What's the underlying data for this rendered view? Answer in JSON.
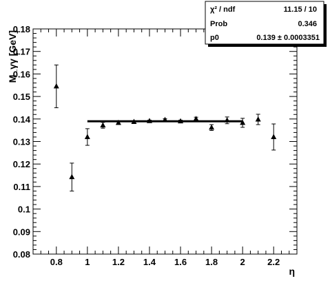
{
  "chart_data": {
    "type": "scatter",
    "xlabel": "η",
    "ylabel": "M_γγ [GeV]",
    "xlim": [
      0.65,
      2.35
    ],
    "ylim": [
      0.08,
      0.18
    ],
    "x_ticks": [
      "0.8",
      "1",
      "1.2",
      "1.4",
      "1.6",
      "1.8",
      "2",
      "2.2"
    ],
    "y_ticks": [
      "0.08",
      "0.09",
      "0.1",
      "0.11",
      "0.12",
      "0.13",
      "0.14",
      "0.15",
      "0.16",
      "0.17",
      "0.18"
    ],
    "points": [
      {
        "x": 0.8,
        "y": 0.1545,
        "err": 0.0095
      },
      {
        "x": 0.9,
        "y": 0.1142,
        "err": 0.0062
      },
      {
        "x": 1.0,
        "y": 0.132,
        "err": 0.0037
      },
      {
        "x": 1.1,
        "y": 0.1372,
        "err": 0.0013
      },
      {
        "x": 1.2,
        "y": 0.1383,
        "err": 0.0007
      },
      {
        "x": 1.3,
        "y": 0.1387,
        "err": 0.0005
      },
      {
        "x": 1.4,
        "y": 0.1391,
        "err": 0.0004
      },
      {
        "x": 1.5,
        "y": 0.1396,
        "err": 0.0005
      },
      {
        "x": 1.6,
        "y": 0.139,
        "err": 0.0005
      },
      {
        "x": 1.7,
        "y": 0.14,
        "err": 0.0008
      },
      {
        "x": 1.8,
        "y": 0.1362,
        "err": 0.0013
      },
      {
        "x": 1.9,
        "y": 0.1394,
        "err": 0.0015
      },
      {
        "x": 2.0,
        "y": 0.1383,
        "err": 0.002
      },
      {
        "x": 2.1,
        "y": 0.1398,
        "err": 0.0023
      },
      {
        "x": 2.2,
        "y": 0.132,
        "err": 0.0058
      }
    ],
    "fit": {
      "x_start": 1.0,
      "x_end": 2.0,
      "y": 0.139
    },
    "grid": false,
    "stats_box": {
      "placement": "top-right",
      "rows": [
        {
          "label": "χ² / ndf",
          "value": "11.15 / 10"
        },
        {
          "label": "Prob",
          "value": "0.346"
        },
        {
          "label": "p0",
          "value": "0.139 ± 0.0003351"
        }
      ]
    }
  }
}
